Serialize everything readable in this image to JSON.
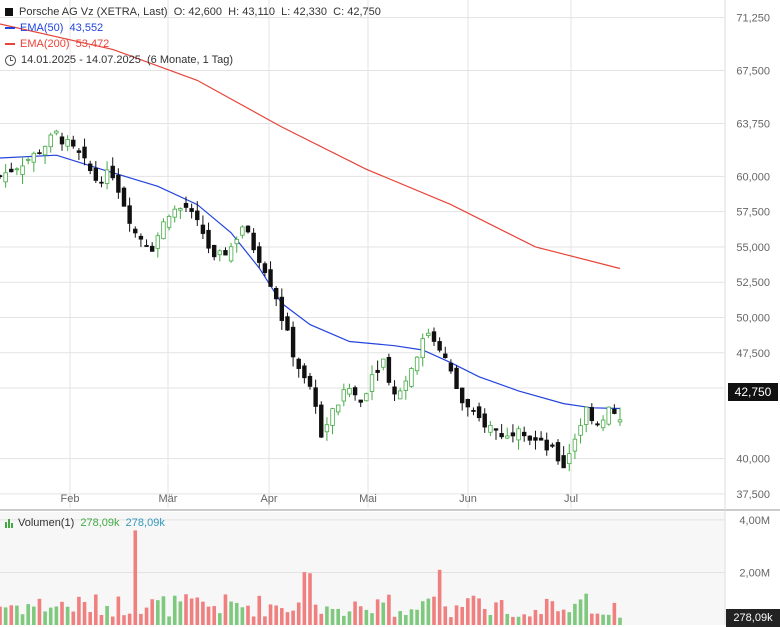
{
  "header": {
    "title": "Porsche AG Vz (XETRA, Last)",
    "open": "O: 42,600",
    "high": "H: 43,110",
    "low": "L: 42,330",
    "close": "C: 42,750",
    "ema50_label": "EMA(50)",
    "ema50_value": "43,552",
    "ema200_label": "EMA(200)",
    "ema200_value": "53,472",
    "period": "14.01.2025 - 14.07.2025",
    "period_note": "(6 Monate, 1 Tag)",
    "last_price": "42,750",
    "volume_label": "Volumen(1)",
    "volume_value_1": "278,09k",
    "volume_value_2": "278,09k",
    "volume_tag": "278,09k"
  },
  "colors": {
    "up": "#44aa44",
    "down": "#111111",
    "ema50": "#2244dd",
    "ema200": "#e8443a",
    "vol_up": "#7ec97e",
    "vol_down": "#f08080",
    "grid": "#e3e3e3"
  },
  "icons": [
    "clock-icon",
    "volume-bars-icon"
  ],
  "chart_data": [
    {
      "type": "candlestick",
      "title": "Porsche AG Vz (XETRA, Last)",
      "x_tick_labels": [
        "Feb",
        "Mär",
        "Apr",
        "Mai",
        "Jun",
        "Jul"
      ],
      "y_tick_values": [
        37.5,
        40,
        42.75,
        45,
        47.5,
        50,
        52.5,
        55,
        57.5,
        60,
        63.75,
        67.5,
        71.25
      ],
      "y_tick_labels": [
        "37,500",
        "40,000",
        "42,750",
        "45,000",
        "47,500",
        "50,000",
        "52,500",
        "55,000",
        "57,500",
        "60,000",
        "63,750",
        "67,500",
        "71,250"
      ],
      "ylim": [
        36.5,
        72.5
      ],
      "grid": true,
      "series": [
        {
          "name": "Porsche AG Vz",
          "close_path": [
            [
              0,
              60.0
            ],
            [
              6,
              61.5
            ],
            [
              10,
              63.0
            ],
            [
              14,
              61.5
            ],
            [
              17,
              59.8
            ],
            [
              20,
              60.2
            ],
            [
              24,
              56.0
            ],
            [
              27,
              55.0
            ],
            [
              30,
              57.5
            ],
            [
              33,
              57.8
            ],
            [
              36,
              56.0
            ],
            [
              38,
              54.0
            ],
            [
              41,
              55.0
            ],
            [
              43,
              56.5
            ],
            [
              45,
              55.0
            ],
            [
              47,
              53.5
            ],
            [
              49,
              51.5
            ],
            [
              50,
              50.0
            ],
            [
              52,
              47.5
            ],
            [
              54,
              45.5
            ],
            [
              56,
              44.0
            ],
            [
              57,
              41.5
            ],
            [
              58,
              42.5
            ],
            [
              60,
              44.0
            ],
            [
              62,
              45.0
            ],
            [
              64,
              44.0
            ],
            [
              66,
              46.0
            ],
            [
              68,
              47.0
            ],
            [
              70,
              44.5
            ],
            [
              72,
              45.5
            ],
            [
              74,
              47.5
            ],
            [
              76,
              49.0
            ],
            [
              78,
              48.0
            ],
            [
              80,
              46.0
            ],
            [
              82,
              44.0
            ],
            [
              84,
              43.0
            ],
            [
              86,
              42.5
            ],
            [
              88,
              42.0
            ],
            [
              90,
              41.5
            ],
            [
              92,
              42.5
            ],
            [
              94,
              41.5
            ],
            [
              96,
              41.0
            ],
            [
              98,
              40.5
            ],
            [
              100,
              39.5
            ],
            [
              102,
              41.5
            ],
            [
              104,
              43.5
            ],
            [
              106,
              42.5
            ],
            [
              108,
              43.5
            ],
            [
              110,
              42.75
            ]
          ]
        },
        {
          "name": "EMA(50)",
          "values": [
            [
              0,
              61.3
            ],
            [
              10,
              61.5
            ],
            [
              18,
              60.5
            ],
            [
              28,
              59.3
            ],
            [
              35,
              58.0
            ],
            [
              41,
              56.0
            ],
            [
              46,
              53.5
            ],
            [
              50,
              51.0
            ],
            [
              55,
              49.5
            ],
            [
              62,
              48.3
            ],
            [
              70,
              48.0
            ],
            [
              75,
              47.7
            ],
            [
              80,
              46.8
            ],
            [
              85,
              45.8
            ],
            [
              92,
              44.8
            ],
            [
              100,
              43.9
            ],
            [
              105,
              43.6
            ],
            [
              110,
              43.552
            ]
          ]
        },
        {
          "name": "EMA(200)",
          "values": [
            [
              0,
              70.8
            ],
            [
              20,
              69.0
            ],
            [
              35,
              66.8
            ],
            [
              50,
              63.5
            ],
            [
              65,
              60.5
            ],
            [
              80,
              58.0
            ],
            [
              95,
              55.0
            ],
            [
              110,
              53.472
            ]
          ]
        }
      ]
    },
    {
      "type": "bar",
      "title": "Volumen(1)",
      "y_tick_values": [
        2000000,
        4000000
      ],
      "y_tick_labels": [
        "2,00M",
        "4,00M"
      ],
      "ylim": [
        0,
        4300000
      ],
      "grid": true
    }
  ]
}
